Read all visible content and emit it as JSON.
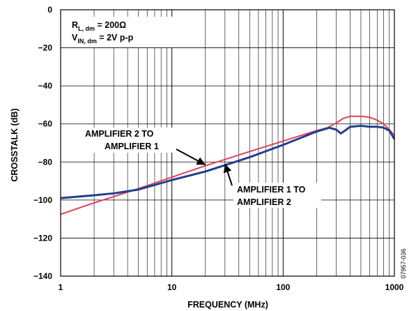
{
  "chart_data": {
    "type": "line",
    "xlabel": "FREQUENCY (MHz)",
    "ylabel": "CROSSTALK (dB)",
    "xscale": "log",
    "xlim": [
      1,
      1000
    ],
    "ylim": [
      -140,
      0
    ],
    "xticks": [
      {
        "value": 1,
        "label": "1"
      },
      {
        "value": 10,
        "label": "10"
      },
      {
        "value": 100,
        "label": "100"
      },
      {
        "value": 1000,
        "label": "1000"
      }
    ],
    "yticks": [
      {
        "value": 0,
        "label": "0"
      },
      {
        "value": -20,
        "label": "−20"
      },
      {
        "value": -40,
        "label": "−40"
      },
      {
        "value": -60,
        "label": "−60"
      },
      {
        "value": -80,
        "label": "−80"
      },
      {
        "value": -100,
        "label": "−100"
      },
      {
        "value": -120,
        "label": "−120"
      },
      {
        "value": -140,
        "label": "−140"
      }
    ],
    "grid": true,
    "conditions": {
      "line1": {
        "main": "R",
        "sub": "L, dm",
        "rest": " = 200Ω"
      },
      "line2": {
        "main": "V",
        "sub": "IN, dm",
        "rest": " = 2V p-p"
      }
    },
    "series": [
      {
        "name": "AMPLIFIER 2 TO AMPLIFIER 1",
        "color": "#e0405a",
        "points": [
          [
            1,
            -107.5
          ],
          [
            2,
            -101.5
          ],
          [
            5,
            -94
          ],
          [
            10,
            -88
          ],
          [
            20,
            -82
          ],
          [
            50,
            -74.5
          ],
          [
            100,
            -69
          ],
          [
            200,
            -63.5
          ],
          [
            250,
            -62
          ],
          [
            300,
            -59.5
          ],
          [
            350,
            -57
          ],
          [
            400,
            -56
          ],
          [
            500,
            -56
          ],
          [
            600,
            -56.5
          ],
          [
            700,
            -58
          ],
          [
            800,
            -60
          ],
          [
            900,
            -63
          ],
          [
            1000,
            -66
          ]
        ]
      },
      {
        "name": "AMPLIFIER 1 TO AMPLIFIER 2",
        "color": "#1f3f8f",
        "points": [
          [
            1,
            -99
          ],
          [
            2,
            -97.5
          ],
          [
            3,
            -96.5
          ],
          [
            5,
            -94.5
          ],
          [
            10,
            -89.5
          ],
          [
            20,
            -85
          ],
          [
            50,
            -77.5
          ],
          [
            100,
            -71
          ],
          [
            200,
            -64
          ],
          [
            260,
            -62
          ],
          [
            300,
            -63
          ],
          [
            330,
            -65
          ],
          [
            360,
            -63.5
          ],
          [
            400,
            -61.5
          ],
          [
            500,
            -61
          ],
          [
            600,
            -61.5
          ],
          [
            700,
            -61.5
          ],
          [
            800,
            -62
          ],
          [
            900,
            -63.5
          ],
          [
            1000,
            -68
          ]
        ]
      }
    ],
    "annotations": [
      {
        "text": [
          "AMPLIFIER 2 TO",
          "AMPLIFIER 1"
        ],
        "arrow_to": [
          20,
          -81.5
        ]
      },
      {
        "text": [
          "AMPLIFIER 1 TO",
          "AMPLIFIER 2"
        ],
        "arrow_to": [
          30,
          -81
        ]
      }
    ]
  },
  "figure_id": "07957-036"
}
